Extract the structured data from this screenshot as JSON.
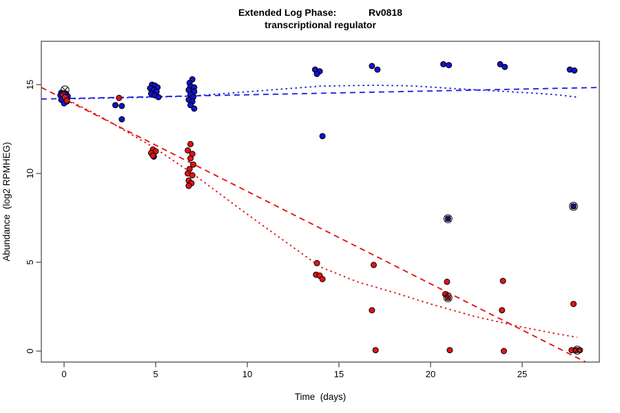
{
  "title": {
    "line1": "Extended Log Phase:            Rv0818",
    "line2": "transcriptional regulator"
  },
  "axes": {
    "x_label": "Time  (days)",
    "y_label": "Abundance  (log2 RPMHEG)"
  },
  "colors": {
    "blue_point": "#1212cd",
    "red_point": "#e51313",
    "blue_line": "#2222e0",
    "red_line": "#e51313",
    "axis": "#3f3f3f",
    "text": "#000000",
    "background": "#ffffff"
  },
  "chart_data": {
    "type": "scatter",
    "title": "Extended Log Phase: Rv0818 transcriptional regulator",
    "xlabel": "Time (days)",
    "ylabel": "Abundance (log2 RPMHEG)",
    "xlim": [
      -1.24,
      29.2
    ],
    "ylim": [
      -0.62,
      17.44
    ],
    "x_ticks": [
      0,
      5,
      10,
      15,
      20,
      25
    ],
    "y_ticks": [
      0,
      5,
      10,
      15
    ],
    "grid": false,
    "legend": "none",
    "series": [
      {
        "name": "blue-points",
        "color": "#1212cd",
        "points": [
          [
            -0.15,
            14.55
          ],
          [
            0.1,
            14.5
          ],
          [
            -0.2,
            14.4
          ],
          [
            0.2,
            14.35
          ],
          [
            0.0,
            14.25
          ],
          [
            -0.15,
            14.15
          ],
          [
            0.15,
            14.05
          ],
          [
            0.0,
            13.95
          ],
          [
            2.8,
            13.85
          ],
          [
            3.15,
            13.8
          ],
          [
            3.15,
            13.05
          ],
          [
            4.8,
            15.0
          ],
          [
            4.95,
            14.95
          ],
          [
            5.1,
            14.85
          ],
          [
            4.7,
            14.8
          ],
          [
            4.9,
            14.7
          ],
          [
            5.05,
            14.6
          ],
          [
            4.75,
            14.5
          ],
          [
            4.95,
            14.4
          ],
          [
            5.15,
            14.3
          ],
          [
            4.9,
            10.95
          ],
          [
            7.0,
            15.3
          ],
          [
            6.85,
            15.1
          ],
          [
            6.9,
            14.9
          ],
          [
            7.1,
            14.85
          ],
          [
            6.8,
            14.7
          ],
          [
            7.1,
            14.6
          ],
          [
            6.9,
            14.45
          ],
          [
            7.05,
            14.3
          ],
          [
            6.8,
            14.15
          ],
          [
            7.0,
            14.05
          ],
          [
            6.9,
            13.85
          ],
          [
            7.1,
            13.65
          ],
          [
            13.7,
            15.85
          ],
          [
            13.95,
            15.75
          ],
          [
            13.8,
            15.6
          ],
          [
            14.1,
            12.1
          ],
          [
            16.8,
            16.05
          ],
          [
            17.1,
            15.85
          ],
          [
            20.7,
            16.15
          ],
          [
            21.0,
            16.1
          ],
          [
            23.8,
            16.15
          ],
          [
            24.05,
            16.0
          ],
          [
            27.6,
            15.85
          ],
          [
            27.85,
            15.8
          ],
          [
            20.95,
            7.45
          ],
          [
            27.8,
            8.15
          ]
        ]
      },
      {
        "name": "red-points",
        "color": "#e51313",
        "points": [
          [
            -0.05,
            14.45
          ],
          [
            0.05,
            14.3
          ],
          [
            0.15,
            14.1
          ],
          [
            3.0,
            14.25
          ],
          [
            4.85,
            11.35
          ],
          [
            5.0,
            11.25
          ],
          [
            4.75,
            11.15
          ],
          [
            4.85,
            11.0
          ],
          [
            6.9,
            11.65
          ],
          [
            6.75,
            11.3
          ],
          [
            7.0,
            11.1
          ],
          [
            6.9,
            10.85
          ],
          [
            7.05,
            10.5
          ],
          [
            6.85,
            10.25
          ],
          [
            6.75,
            10.0
          ],
          [
            7.0,
            9.9
          ],
          [
            6.8,
            9.6
          ],
          [
            6.95,
            9.45
          ],
          [
            6.8,
            9.3
          ],
          [
            13.8,
            4.95
          ],
          [
            13.75,
            4.3
          ],
          [
            13.95,
            4.25
          ],
          [
            14.1,
            4.05
          ],
          [
            16.9,
            4.85
          ],
          [
            16.8,
            2.3
          ],
          [
            17.0,
            0.05
          ],
          [
            20.9,
            3.9
          ],
          [
            20.8,
            3.2
          ],
          [
            20.95,
            3.0
          ],
          [
            21.05,
            0.05
          ],
          [
            23.95,
            3.95
          ],
          [
            23.9,
            2.3
          ],
          [
            24.0,
            0.0
          ],
          [
            27.8,
            2.65
          ],
          [
            27.7,
            0.05
          ],
          [
            27.95,
            0.05
          ],
          [
            28.15,
            0.05
          ]
        ]
      }
    ],
    "circled_points": [
      [
        0.05,
        14.7
      ],
      [
        20.95,
        7.45
      ],
      [
        20.95,
        3.0
      ],
      [
        27.8,
        8.15
      ],
      [
        28.0,
        0.05
      ]
    ],
    "trend_lines": [
      {
        "name": "blue-linear-fit",
        "color": "#2222e0",
        "dash": "dashed",
        "points": [
          [
            -1.24,
            14.19
          ],
          [
            29.2,
            14.84
          ]
        ]
      },
      {
        "name": "blue-loess-fit",
        "color": "#2222e0",
        "dash": "dotted",
        "points": [
          [
            0,
            14.2
          ],
          [
            2,
            14.24
          ],
          [
            5,
            14.3
          ],
          [
            7,
            14.36
          ],
          [
            10,
            14.6
          ],
          [
            14,
            14.92
          ],
          [
            17,
            14.97
          ],
          [
            19,
            14.93
          ],
          [
            21,
            14.8
          ],
          [
            24,
            14.62
          ],
          [
            26,
            14.5
          ],
          [
            27,
            14.42
          ],
          [
            28,
            14.3
          ]
        ]
      },
      {
        "name": "red-linear-fit",
        "color": "#e51313",
        "dash": "dashed",
        "points": [
          [
            -1.24,
            14.84
          ],
          [
            29.2,
            -1.0
          ]
        ]
      },
      {
        "name": "red-loess-fit",
        "color": "#e51313",
        "dash": "dotted",
        "points": [
          [
            0,
            14.25
          ],
          [
            2,
            13.2
          ],
          [
            5,
            11.4
          ],
          [
            7,
            10.0
          ],
          [
            10,
            7.7
          ],
          [
            14,
            4.73
          ],
          [
            16,
            3.9
          ],
          [
            18,
            3.3
          ],
          [
            20,
            2.65
          ],
          [
            22.4,
            1.95
          ],
          [
            25,
            1.35
          ],
          [
            27,
            0.95
          ],
          [
            28,
            0.78
          ]
        ]
      }
    ]
  }
}
